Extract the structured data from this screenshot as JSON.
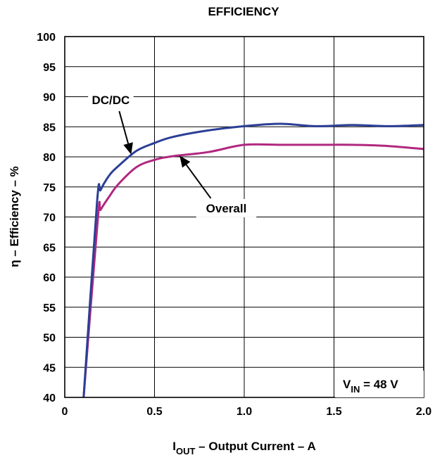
{
  "chart_data": {
    "type": "line",
    "title": "EFFICIENCY",
    "xlabel": {
      "prefix": "I",
      "sub": "OUT",
      "suffix": " – Output Current  – A"
    },
    "ylabel": "η – Efficiency – %",
    "xlim": [
      0,
      2.0
    ],
    "ylim": [
      40,
      100
    ],
    "x_ticks": [
      {
        "value": 0,
        "label": "0"
      },
      {
        "value": 0.5,
        "label": "0.5"
      },
      {
        "value": 1.0,
        "label": "1.0"
      },
      {
        "value": 1.5,
        "label": "1.5"
      },
      {
        "value": 2.0,
        "label": "2.0"
      }
    ],
    "y_ticks": [
      40,
      45,
      50,
      55,
      60,
      65,
      70,
      75,
      80,
      85,
      90,
      95,
      100
    ],
    "grid": true,
    "series": [
      {
        "name": "DC/DC",
        "color": "#2b3f96",
        "x": [
          0.105,
          0.18,
          0.2,
          0.25,
          0.3,
          0.4,
          0.5,
          0.6,
          0.8,
          1.0,
          1.2,
          1.4,
          1.6,
          1.8,
          2.0
        ],
        "y": [
          40,
          72.5,
          74.5,
          77,
          78.5,
          81,
          82.3,
          83.3,
          84.4,
          85.1,
          85.5,
          85.1,
          85.3,
          85.1,
          85.3
        ]
      },
      {
        "name": "Overall",
        "color": "#b0287f",
        "x": [
          0.105,
          0.185,
          0.2,
          0.25,
          0.3,
          0.4,
          0.5,
          0.6,
          0.8,
          1.0,
          1.2,
          1.4,
          1.6,
          1.8,
          2.0
        ],
        "y": [
          40,
          70,
          71.2,
          73.5,
          75.5,
          78.3,
          79.5,
          80.1,
          80.8,
          82.0,
          82.0,
          82.0,
          82.0,
          81.8,
          81.3
        ]
      }
    ],
    "annotations": [
      {
        "text": "DC/DC",
        "series": "DC/DC",
        "label_at": {
          "x": 0.13,
          "y": 89
        },
        "arrow_to": {
          "x": 0.37,
          "y": 80.4
        }
      },
      {
        "text": "Overall",
        "series": "Overall",
        "label_at": {
          "x": 0.9,
          "y": 71
        },
        "arrow_to": {
          "x": 0.64,
          "y": 80.2
        }
      }
    ],
    "condition_label": {
      "prefix": "V",
      "sub": "IN",
      "suffix": "  = 48 V"
    }
  }
}
